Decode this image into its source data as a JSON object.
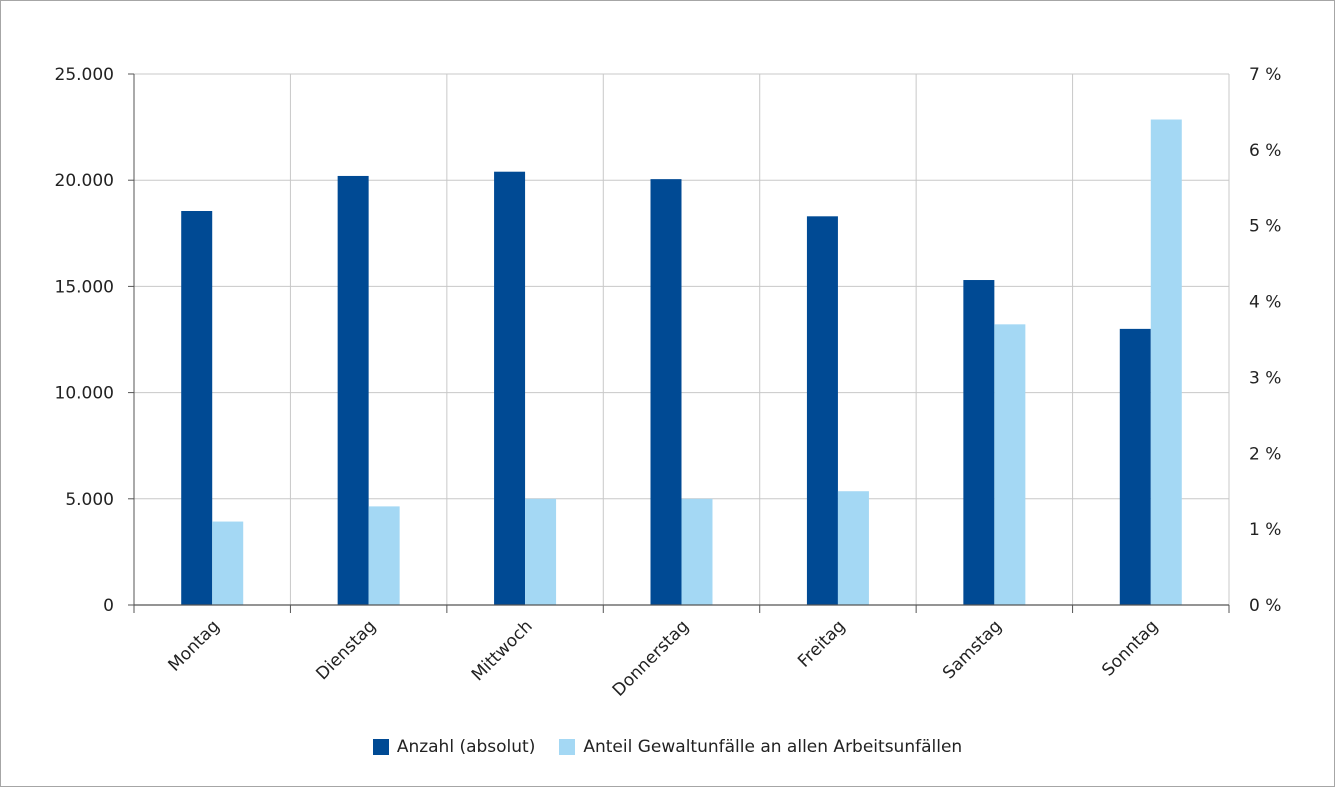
{
  "chart_data": {
    "type": "bar",
    "categories": [
      "Montag",
      "Dienstag",
      "Mittwoch",
      "Donnerstag",
      "Freitag",
      "Samstag",
      "Sonntag"
    ],
    "series": [
      {
        "name": "Anzahl (absolut)",
        "axis": "left",
        "color": "#004a94",
        "values": [
          18550,
          20200,
          20400,
          20050,
          18300,
          15300,
          13000
        ]
      },
      {
        "name": "Anteil Gewaltunfälle an allen Arbeitsunfällen",
        "axis": "right",
        "color": "#a4d8f4",
        "values": [
          1.1,
          1.3,
          1.4,
          1.4,
          1.5,
          3.7,
          6.4
        ]
      }
    ],
    "y_left": {
      "ylim": [
        0,
        25000
      ],
      "ticks": [
        0,
        5000,
        10000,
        15000,
        20000,
        25000
      ],
      "tick_labels": [
        "0",
        "5.000",
        "10.000",
        "15.000",
        "20.000",
        "25.000"
      ]
    },
    "y_right": {
      "ylim": [
        0,
        7
      ],
      "ticks": [
        0,
        1,
        2,
        3,
        4,
        5,
        6,
        7
      ],
      "tick_labels": [
        "0 %",
        "1 %",
        "2 %",
        "3 %",
        "4 %",
        "5 %",
        "6 %",
        "7 %"
      ]
    },
    "grid": true,
    "legend_position": "bottom"
  }
}
